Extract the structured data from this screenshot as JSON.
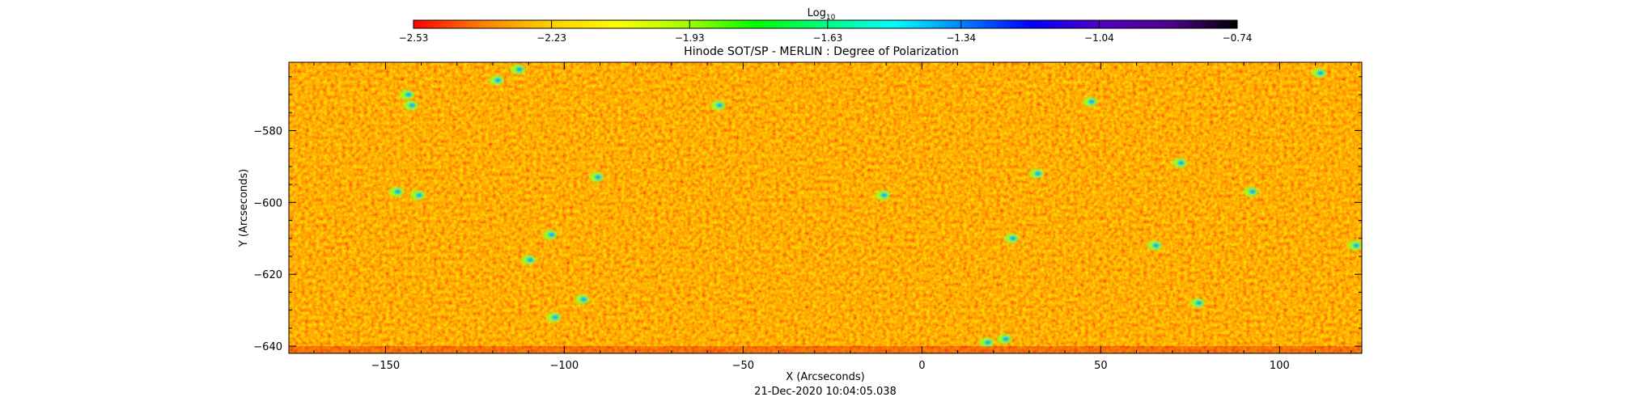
{
  "chart_data": {
    "type": "heatmap",
    "title": "Hinode SOT/SP - MERLIN : Degree of Polarization",
    "xlabel": "X (Arcseconds)",
    "ylabel": "Y (Arcseconds)",
    "footer": "21-Dec-2020 10:04:05.038",
    "xlim": [
      -177,
      123
    ],
    "ylim": [
      -642,
      -561
    ],
    "x_ticks": [
      -150,
      -100,
      -50,
      0,
      50,
      100
    ],
    "x_tick_labels": [
      "−150",
      "−100",
      "−50",
      "0",
      "50",
      "100"
    ],
    "y_ticks": [
      -580,
      -600,
      -620,
      -640
    ],
    "y_tick_labels": [
      "−580",
      "−600",
      "−620",
      "−640"
    ],
    "colorbar": {
      "label_base": "Log",
      "label_sub": "10",
      "scale": "log10",
      "range": [
        -2.53,
        -0.74
      ],
      "ticks": [
        -2.53,
        -2.23,
        -1.93,
        -1.63,
        -1.34,
        -1.04,
        -0.74
      ],
      "tick_labels": [
        "−2.53",
        "−2.23",
        "−1.93",
        "−1.63",
        "−1.34",
        "−1.04",
        "−0.74"
      ],
      "colors": [
        "#ff0000",
        "#ff8000",
        "#ffd000",
        "#ffff00",
        "#a0ff00",
        "#00ff00",
        "#00ff80",
        "#00ffff",
        "#0080ff",
        "#0000ff",
        "#5000c0",
        "#500090",
        "#000000"
      ]
    },
    "features": [
      {
        "x": -144,
        "y": -570
      },
      {
        "x": -143,
        "y": -573
      },
      {
        "x": -119,
        "y": -566
      },
      {
        "x": -113,
        "y": -563
      },
      {
        "x": -147,
        "y": -597
      },
      {
        "x": -141,
        "y": -598
      },
      {
        "x": -110,
        "y": -616
      },
      {
        "x": -104,
        "y": -609
      },
      {
        "x": -103,
        "y": -632
      },
      {
        "x": -95,
        "y": -627
      },
      {
        "x": -91,
        "y": -593
      },
      {
        "x": -57,
        "y": -573
      },
      {
        "x": -11,
        "y": -598
      },
      {
        "x": 25,
        "y": -610
      },
      {
        "x": 32,
        "y": -592
      },
      {
        "x": 18,
        "y": -639
      },
      {
        "x": 23,
        "y": -638
      },
      {
        "x": 47,
        "y": -572
      },
      {
        "x": 65,
        "y": -612
      },
      {
        "x": 77,
        "y": -628
      },
      {
        "x": 92,
        "y": -597
      },
      {
        "x": 111,
        "y": -564
      },
      {
        "x": 121,
        "y": -612
      },
      {
        "x": 72,
        "y": -589
      }
    ]
  }
}
